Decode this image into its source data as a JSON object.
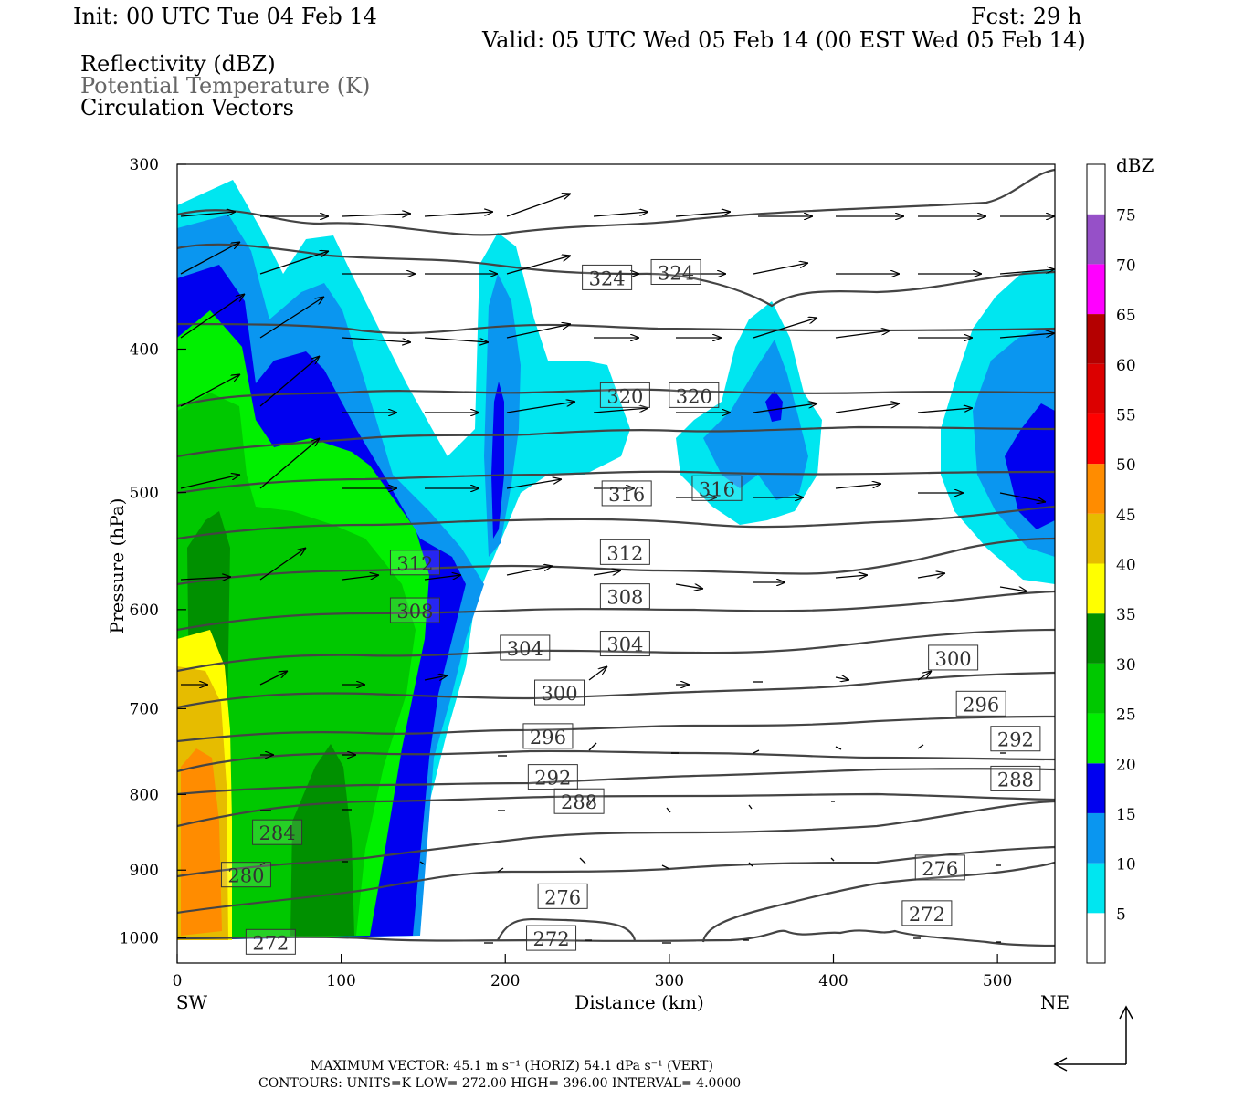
{
  "header": {
    "init": "Init: 00 UTC Tue 04 Feb 14",
    "fcst": "Fcst:   29 h",
    "valid": "Valid: 05 UTC Wed 05 Feb 14 (00 EST Wed 05 Feb 14)",
    "field1": "Reflectivity (dBZ)",
    "field2": "Potential Temperature (K)",
    "field3": "Circulation Vectors"
  },
  "footer": {
    "line1": "MAXIMUM VECTOR:  45.1 m s⁻¹ (HORIZ)        54.1 dPa s⁻¹ (VERT)",
    "line2": "CONTOURS:  UNITS=K  LOW=   272.00      HIGH=   396.00      INTERVAL=     4.0000"
  },
  "chart_data": {
    "type": "heatmap",
    "xlabel": "Distance (km)",
    "ylabel": "Pressure (hPa)",
    "x_end_labels": {
      "left": "SW",
      "right": "NE"
    },
    "xlim": [
      0,
      535
    ],
    "ylim": [
      1040,
      300
    ],
    "y_scale": "log-pressure",
    "xticks": [
      0,
      100,
      200,
      300,
      400,
      500
    ],
    "yticks": [
      300,
      400,
      500,
      600,
      700,
      800,
      900,
      1000
    ],
    "colorbar": {
      "title": "dBZ",
      "levels": [
        5,
        10,
        15,
        20,
        25,
        30,
        35,
        40,
        45,
        50,
        55,
        60,
        65,
        70,
        75
      ],
      "colors": [
        "#ffffff",
        "#00e6f0",
        "#0a96f0",
        "#0000f0",
        "#00f000",
        "#00c800",
        "#009000",
        "#ffff00",
        "#e6bc00",
        "#ff8c00",
        "#ff0000",
        "#dc0000",
        "#b40000",
        "#ff00ff",
        "#9650c8",
        "#ffffff"
      ]
    },
    "theta_contours_K": [
      272,
      276,
      280,
      284,
      288,
      292,
      296,
      300,
      304,
      308,
      312,
      316,
      320,
      324
    ],
    "contour_labels": [
      {
        "value": "324",
        "x": 262,
        "p": 358
      },
      {
        "value": "324",
        "x": 304,
        "p": 355
      },
      {
        "value": "320",
        "x": 273,
        "p": 430
      },
      {
        "value": "320",
        "x": 315,
        "p": 430
      },
      {
        "value": "316",
        "x": 274,
        "p": 501
      },
      {
        "value": "316",
        "x": 329,
        "p": 497
      },
      {
        "value": "312",
        "x": 145,
        "p": 558
      },
      {
        "value": "312",
        "x": 273,
        "p": 549
      },
      {
        "value": "308",
        "x": 145,
        "p": 601
      },
      {
        "value": "308",
        "x": 273,
        "p": 588
      },
      {
        "value": "304",
        "x": 212,
        "p": 637
      },
      {
        "value": "304",
        "x": 273,
        "p": 633
      },
      {
        "value": "300",
        "x": 233,
        "p": 683
      },
      {
        "value": "300",
        "x": 473,
        "p": 647
      },
      {
        "value": "296",
        "x": 226,
        "p": 731
      },
      {
        "value": "296",
        "x": 490,
        "p": 695
      },
      {
        "value": "292",
        "x": 229,
        "p": 779
      },
      {
        "value": "292",
        "x": 511,
        "p": 734
      },
      {
        "value": "288",
        "x": 245,
        "p": 809
      },
      {
        "value": "288",
        "x": 511,
        "p": 781
      },
      {
        "value": "284",
        "x": 61,
        "p": 849
      },
      {
        "value": "280",
        "x": 42,
        "p": 907
      },
      {
        "value": "276",
        "x": 235,
        "p": 938
      },
      {
        "value": "276",
        "x": 465,
        "p": 897
      },
      {
        "value": "272",
        "x": 457,
        "p": 963
      },
      {
        "value": "272",
        "x": 228,
        "p": 1001
      },
      {
        "value": "272",
        "x": 57,
        "p": 1007
      }
    ]
  }
}
